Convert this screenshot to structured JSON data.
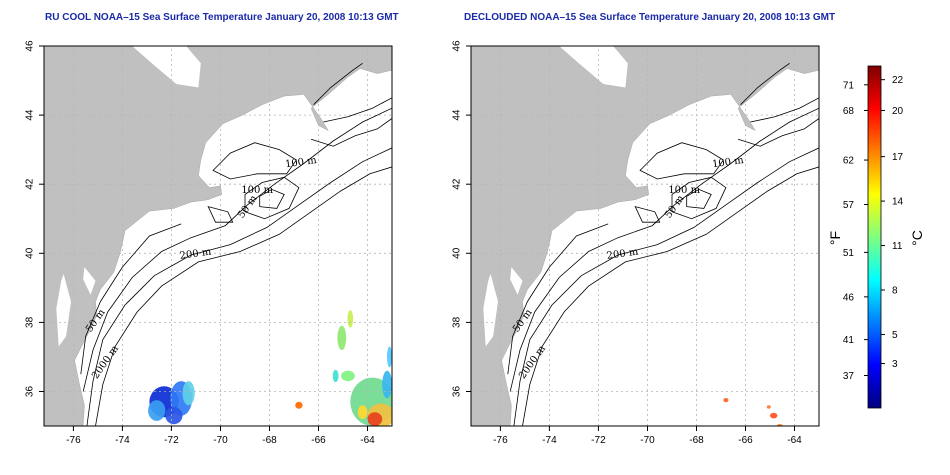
{
  "panels": [
    {
      "title": "RU COOL NOAA–15 Sea Surface Temperature January 20, 2008 10:13 GMT"
    },
    {
      "title": "DECLOUDED NOAA–15 Sea Surface Temperature January 20, 2008 10:13 GMT"
    }
  ],
  "axes": {
    "lon_labels": [
      "-76",
      "-74",
      "-72",
      "-70",
      "-68",
      "-66",
      "-64"
    ],
    "lat_labels": [
      "36",
      "38",
      "40",
      "42",
      "44",
      "46"
    ],
    "lon_range": [
      -77.2,
      -63.0
    ],
    "lat_range": [
      35.0,
      46.0
    ]
  },
  "contour_labels": [
    "100 m",
    "100 m",
    "50 m",
    "200 m",
    "50 m",
    "2000 m"
  ],
  "colorbar": {
    "fahrenheit_unit": "°F",
    "celsius_unit": "°C",
    "fahrenheit_ticks": [
      "71",
      "68",
      "62",
      "57",
      "51",
      "46",
      "41",
      "37"
    ],
    "celsius_ticks": [
      "22",
      "20",
      "17",
      "14",
      "11",
      "8",
      "5",
      "3"
    ],
    "colors": [
      "#00007f",
      "#0000ff",
      "#007fff",
      "#00ffff",
      "#7fff7f",
      "#ffff00",
      "#ff7f00",
      "#ff0000",
      "#7f0000"
    ]
  },
  "colors": {
    "land": "#c0c0c0",
    "ocean": "#ffffff",
    "title": "#1a2aa8",
    "grid": "#b5b5b5"
  }
}
